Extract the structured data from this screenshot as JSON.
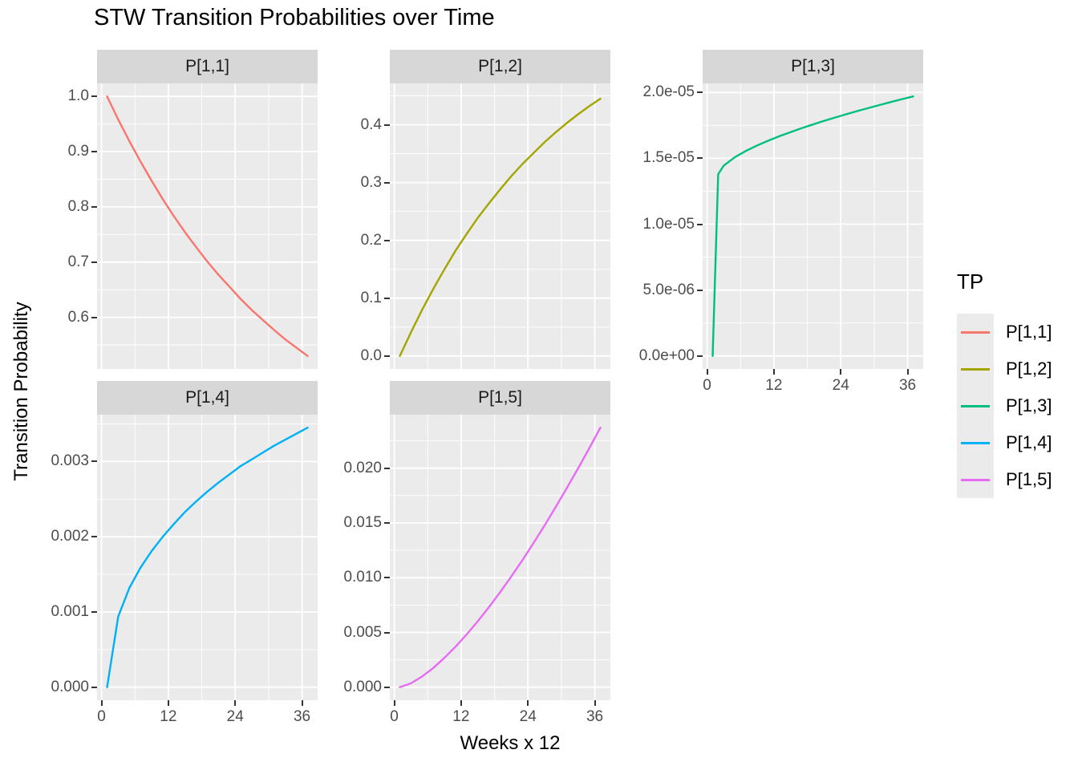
{
  "title": "STW Transition Probabilities over Time",
  "y_axis_label": "Transition Probability",
  "x_axis_label": "Weeks x 12",
  "legend": {
    "title": "TP",
    "items": [
      {
        "label": "P[1,1]",
        "color": "#F8766D"
      },
      {
        "label": "P[1,2]",
        "color": "#A3A500"
      },
      {
        "label": "P[1,3]",
        "color": "#00BF7D"
      },
      {
        "label": "P[1,4]",
        "color": "#00B0F6"
      },
      {
        "label": "P[1,5]",
        "color": "#E76BF3"
      }
    ]
  },
  "colors": {
    "panel_bg": "#EBEBEB",
    "strip_bg": "#D7D7D7",
    "grid": "#FFFFFF",
    "tick_text": "#4D4D4D",
    "axis_tick": "#333333"
  },
  "chart_data": {
    "type": "line",
    "title": "STW Transition Probabilities over Time",
    "xlabel": "Weeks x 12",
    "ylabel": "Transition Probability",
    "legend_title": "TP",
    "legend_position": "right",
    "grid": true,
    "xlim": [
      -0.8,
      38.8
    ],
    "x_ticks": [
      {
        "v": 0,
        "label": "0"
      },
      {
        "v": 12,
        "label": "12"
      },
      {
        "v": 24,
        "label": "24"
      },
      {
        "v": 36,
        "label": "36"
      }
    ],
    "x_minor": [
      6,
      18,
      30
    ],
    "facets": [
      {
        "label": "P[1,1]",
        "color": "#F8766D",
        "row": 0,
        "col": 0,
        "show_x_axis": false,
        "ylim": [
          0.5065,
          1.0235
        ],
        "y_ticks": [
          {
            "v": 1.0,
            "label": "1.0"
          },
          {
            "v": 0.9,
            "label": "0.9"
          },
          {
            "v": 0.8,
            "label": "0.8"
          },
          {
            "v": 0.7,
            "label": "0.7"
          },
          {
            "v": 0.6,
            "label": "0.6"
          }
        ],
        "y_minor": [
          0.95,
          0.85,
          0.75,
          0.65,
          0.55
        ],
        "x": [
          1,
          3,
          5,
          7,
          9,
          11,
          13,
          15,
          17,
          19,
          21,
          23,
          25,
          27,
          29,
          31,
          33,
          35,
          37
        ],
        "y": [
          1.0,
          0.958,
          0.919,
          0.882,
          0.847,
          0.814,
          0.783,
          0.754,
          0.727,
          0.701,
          0.677,
          0.655,
          0.633,
          0.613,
          0.595,
          0.577,
          0.56,
          0.545,
          0.53
        ]
      },
      {
        "label": "P[1,2]",
        "color": "#A3A500",
        "row": 0,
        "col": 1,
        "show_x_axis": false,
        "ylim": [
          -0.02245,
          0.47145
        ],
        "y_ticks": [
          {
            "v": 0.4,
            "label": "0.4"
          },
          {
            "v": 0.3,
            "label": "0.3"
          },
          {
            "v": 0.2,
            "label": "0.2"
          },
          {
            "v": 0.1,
            "label": "0.1"
          },
          {
            "v": 0.0,
            "label": "0.0"
          }
        ],
        "y_minor": [
          0.45,
          0.35,
          0.25,
          0.15,
          0.05
        ],
        "x": [
          1,
          3,
          5,
          7,
          9,
          11,
          13,
          15,
          17,
          19,
          21,
          23,
          25,
          27,
          29,
          31,
          33,
          35,
          37
        ],
        "y": [
          0.0,
          0.041,
          0.08,
          0.116,
          0.15,
          0.182,
          0.211,
          0.239,
          0.264,
          0.288,
          0.311,
          0.332,
          0.351,
          0.37,
          0.387,
          0.403,
          0.418,
          0.432,
          0.445
        ]
      },
      {
        "label": "P[1,3]",
        "color": "#00BF7D",
        "row": 0,
        "col": 2,
        "show_x_axis": true,
        "ylim": [
          -9.85e-07,
          2.0685e-05
        ],
        "y_ticks": [
          {
            "v": 2e-05,
            "label": "2.0e-05"
          },
          {
            "v": 1.5e-05,
            "label": "1.5e-05"
          },
          {
            "v": 1e-05,
            "label": "1.0e-05"
          },
          {
            "v": 5e-06,
            "label": "5.0e-06"
          },
          {
            "v": 0,
            "label": "0.0e+00"
          }
        ],
        "y_minor": [
          1.75e-05,
          1.25e-05,
          7.5e-06,
          2.5e-06
        ],
        "x": [
          1,
          2,
          3,
          5,
          7,
          9,
          11,
          13,
          15,
          17,
          19,
          21,
          23,
          25,
          27,
          29,
          31,
          33,
          35,
          37
        ],
        "y": [
          0,
          1.38e-05,
          1.445e-05,
          1.509e-05,
          1.557e-05,
          1.598e-05,
          1.634e-05,
          1.668e-05,
          1.699e-05,
          1.729e-05,
          1.757e-05,
          1.784e-05,
          1.81e-05,
          1.835e-05,
          1.859e-05,
          1.882e-05,
          1.905e-05,
          1.927e-05,
          1.949e-05,
          1.97e-05
        ]
      },
      {
        "label": "P[1,4]",
        "color": "#00B0F6",
        "row": 1,
        "col": 0,
        "show_x_axis": true,
        "ylim": [
          -0.0001725,
          0.0036225
        ],
        "y_ticks": [
          {
            "v": 0.003,
            "label": "0.003"
          },
          {
            "v": 0.002,
            "label": "0.002"
          },
          {
            "v": 0.001,
            "label": "0.001"
          },
          {
            "v": 0.0,
            "label": "0.000"
          }
        ],
        "y_minor": [
          0.0035,
          0.0025,
          0.0015,
          0.0005
        ],
        "x": [
          1,
          3,
          5,
          7,
          9,
          11,
          13,
          15,
          17,
          19,
          21,
          23,
          25,
          27,
          29,
          31,
          33,
          35,
          37
        ],
        "y": [
          0.0,
          0.00094,
          0.00132,
          0.00159,
          0.00181,
          0.002,
          0.00217,
          0.00233,
          0.00247,
          0.0026,
          0.00272,
          0.00283,
          0.00294,
          0.00303,
          0.00312,
          0.00321,
          0.00329,
          0.00337,
          0.00345
        ]
      },
      {
        "label": "P[1,5]",
        "color": "#E76BF3",
        "row": 1,
        "col": 1,
        "show_x_axis": true,
        "ylim": [
          -0.001185,
          0.024885
        ],
        "y_ticks": [
          {
            "v": 0.02,
            "label": "0.020"
          },
          {
            "v": 0.015,
            "label": "0.015"
          },
          {
            "v": 0.01,
            "label": "0.010"
          },
          {
            "v": 0.005,
            "label": "0.005"
          },
          {
            "v": 0.0,
            "label": "0.000"
          }
        ],
        "y_minor": [
          0.0225,
          0.0175,
          0.0125,
          0.0075,
          0.0025
        ],
        "x": [
          1,
          3,
          5,
          7,
          9,
          11,
          13,
          15,
          17,
          19,
          21,
          23,
          25,
          27,
          29,
          31,
          33,
          35,
          37
        ],
        "y": [
          0.0,
          0.00036,
          0.00098,
          0.00176,
          0.00268,
          0.0037,
          0.00482,
          0.00603,
          0.00731,
          0.00868,
          0.01011,
          0.0116,
          0.01317,
          0.01479,
          0.01646,
          0.0182,
          0.01998,
          0.02181,
          0.0237
        ]
      }
    ]
  }
}
